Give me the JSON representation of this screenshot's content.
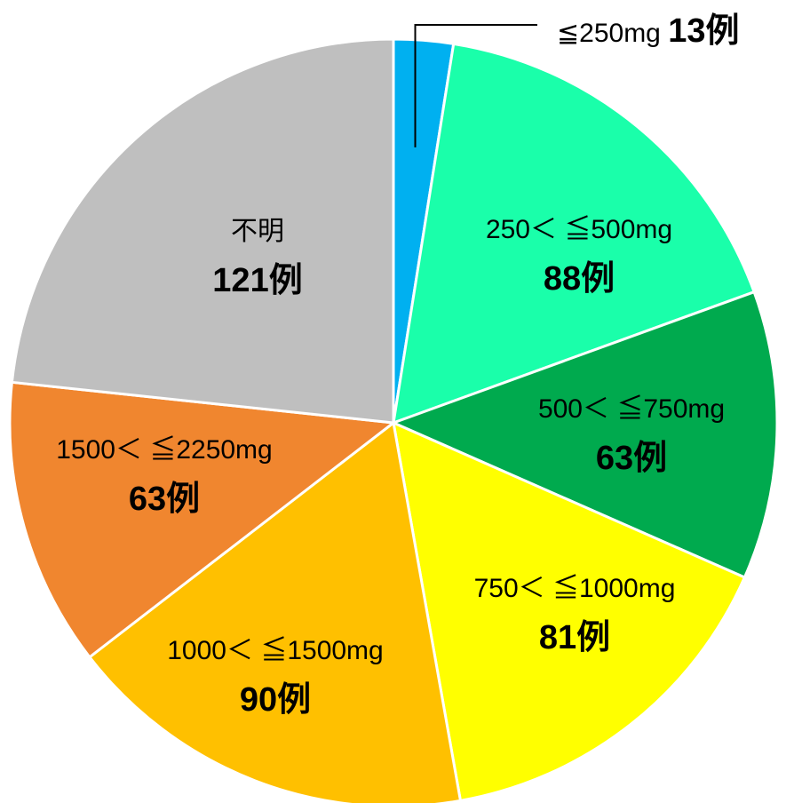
{
  "chart_data": {
    "type": "pie",
    "start": "12 o'clock",
    "direction": "clockwise",
    "slices": [
      {
        "label": "≦250mg",
        "count_label": "13例",
        "value": 13,
        "color": "#00B0F0"
      },
      {
        "label": "250＜ ≦500mg",
        "count_label": "88例",
        "value": 88,
        "color": "#1AFFAA"
      },
      {
        "label": "500＜ ≦750mg",
        "count_label": "63例",
        "value": 63,
        "color": "#00AA4E"
      },
      {
        "label": "750＜ ≦1000mg",
        "count_label": "81例",
        "value": 81,
        "color": "#FFFF00"
      },
      {
        "label": "1000＜ ≦1500mg",
        "count_label": "90例",
        "value": 90,
        "color": "#FFC000"
      },
      {
        "label": "1500＜ ≦2250mg",
        "count_label": "63例",
        "value": 63,
        "color": "#F0862F"
      },
      {
        "label": "不明",
        "count_label": "121例",
        "value": 121,
        "color": "#BFBFBF"
      }
    ]
  }
}
